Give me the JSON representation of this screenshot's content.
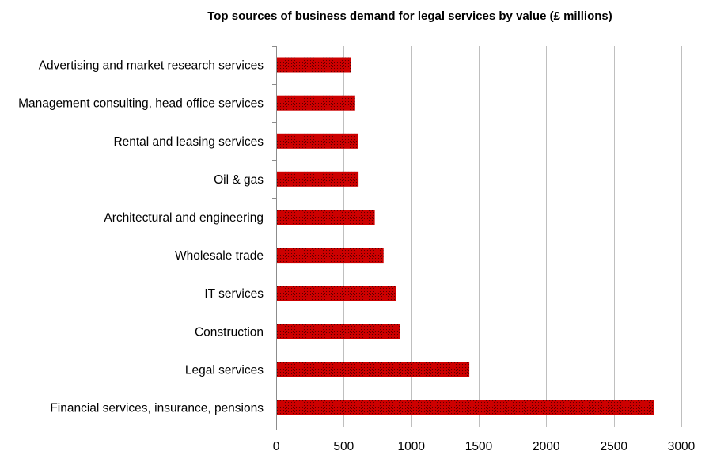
{
  "chart_data": {
    "type": "bar",
    "orientation": "horizontal",
    "title": "Top sources of business demand for legal services by value (£ millions)",
    "categories": [
      "Advertising and market research services",
      "Management consulting, head office services",
      "Rental and leasing services",
      "Oil & gas",
      "Architectural and engineering",
      "Wholesale trade",
      "IT services",
      "Construction",
      "Legal services",
      "Financial services, insurance, pensions"
    ],
    "values": [
      555,
      585,
      605,
      610,
      730,
      795,
      885,
      915,
      1430,
      2800
    ],
    "xlim": [
      0,
      3000
    ],
    "xticks": [
      0,
      500,
      1000,
      1500,
      2000,
      2500,
      3000
    ],
    "xlabel": "",
    "ylabel": "",
    "grid": "vertical",
    "legend": "none",
    "bar_color": "#cc0000",
    "bar_pattern_color": "#5a0000"
  }
}
